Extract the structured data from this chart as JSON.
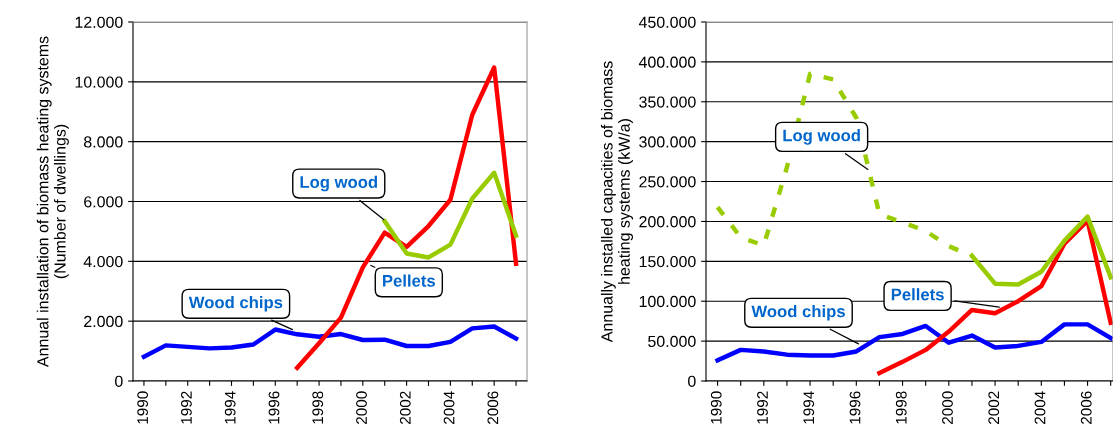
{
  "chart_data": [
    {
      "type": "line",
      "ylabel": "Annual installation of biomass heating systems\n(Number of dwellings)",
      "categories": [
        "1990",
        null,
        "1992",
        null,
        "1994",
        null,
        "1996",
        null,
        "1998",
        null,
        "2000",
        null,
        "2002",
        null,
        "2004",
        null,
        "2006",
        null
      ],
      "ylim": [
        0,
        12000
      ],
      "yticks": [
        0,
        {
          "value": 2000,
          "label": "2.000"
        },
        {
          "value": 4000,
          "label": "4.000"
        },
        {
          "value": 6000,
          "label": "6.000"
        },
        {
          "value": 8000,
          "label": "8.000"
        },
        {
          "value": 10000,
          "label": "10.000"
        },
        {
          "value": 12000,
          "label": "12.000"
        }
      ],
      "grid": "y",
      "legend": false,
      "series": [
        {
          "name": "Wood chips",
          "color": "#0000ff",
          "values": [
            810,
            1190,
            1140,
            1090,
            1120,
            1220,
            1720,
            1560,
            1480,
            1570,
            1370,
            1380,
            1170,
            1170,
            1310,
            1760,
            1820,
            1420
          ]
        },
        {
          "name": "Pellets",
          "color": "#ff0000",
          "values": [
            null,
            null,
            null,
            null,
            null,
            null,
            null,
            440,
            1260,
            2120,
            3800,
            4960,
            4480,
            5180,
            6060,
            8900,
            10480,
            3920
          ]
        },
        {
          "name": "Log wood",
          "color": "#99cc00",
          "values": [
            null,
            null,
            null,
            null,
            null,
            null,
            null,
            null,
            null,
            null,
            null,
            5340,
            4260,
            4130,
            4560,
            6100,
            6960,
            4860
          ]
        }
      ]
    },
    {
      "type": "line",
      "ylabel": "Annually installed capacities of biomass\nheating systems (kW/a)",
      "categories": [
        "1990",
        null,
        "1992",
        null,
        "1994",
        null,
        "1996",
        null,
        "1998",
        null,
        "2000",
        null,
        "2002",
        null,
        "2004",
        null,
        "2006",
        null
      ],
      "ylim": [
        0,
        450000
      ],
      "yticks": [
        0,
        {
          "value": 50000,
          "label": "50.000"
        },
        {
          "value": 100000,
          "label": "100.000"
        },
        {
          "value": 150000,
          "label": "150.000"
        },
        {
          "value": 200000,
          "label": "200.000"
        },
        {
          "value": 250000,
          "label": "250.000"
        },
        {
          "value": 300000,
          "label": "300.000"
        },
        {
          "value": 350000,
          "label": "350.000"
        },
        {
          "value": 400000,
          "label": "400.000"
        },
        {
          "value": 450000,
          "label": "450.000"
        }
      ],
      "grid": "y",
      "legend": false,
      "series": [
        {
          "name": "Wood chips",
          "color": "#0000ff",
          "values": [
            26000,
            39000,
            37000,
            33000,
            32000,
            32000,
            37000,
            55000,
            59000,
            69000,
            48000,
            57000,
            42000,
            44000,
            49000,
            71000,
            71000,
            54000
          ]
        },
        {
          "name": "Pellets",
          "color": "#ff0000",
          "values": [
            null,
            null,
            null,
            null,
            null,
            null,
            null,
            10000,
            24000,
            39000,
            62000,
            89000,
            85000,
            100000,
            119000,
            172000,
            201000,
            73000
          ]
        },
        {
          "name": "Log wood",
          "color": "#99cc00",
          "line_style": "dashed",
          "values": [
            218000,
            180000,
            170000,
            268000,
            385000,
            378000,
            330000,
            209000,
            199000,
            188000,
            169000,
            157000,
            null,
            null,
            null,
            null,
            null,
            null
          ]
        },
        {
          "color": "#99cc00",
          "line_style": "solid",
          "values": [
            null,
            null,
            null,
            null,
            null,
            null,
            null,
            null,
            null,
            null,
            null,
            157000,
            122000,
            121000,
            137000,
            176000,
            206000,
            130000
          ]
        }
      ]
    }
  ]
}
